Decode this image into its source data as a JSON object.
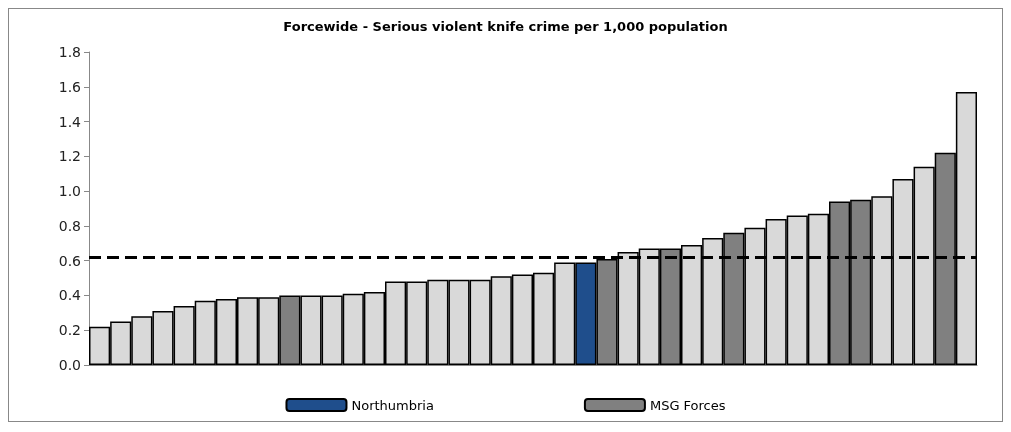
{
  "chart_data": {
    "type": "bar",
    "title": "Forcewide - Serious violent knife crime per 1,000 population",
    "categories": [
      null,
      null,
      null,
      null,
      null,
      null,
      null,
      null,
      null,
      null,
      null,
      null,
      null,
      null,
      null,
      null,
      null,
      null,
      null,
      null,
      null,
      null,
      null,
      null,
      null,
      null,
      null,
      null,
      null,
      null,
      null,
      null,
      null,
      null,
      null,
      null,
      null,
      null,
      null,
      null,
      null,
      null
    ],
    "series": [
      {
        "color": "#d9d9d9",
        "values": [
          0.22,
          0.25,
          0.28,
          0.31,
          0.34,
          0.37,
          0.38,
          0.39,
          0.39,
          null,
          0.4,
          0.4,
          0.41,
          0.42,
          0.48,
          0.48,
          0.49,
          0.49,
          0.49,
          0.51,
          0.52,
          0.53,
          0.59,
          null,
          null,
          0.65,
          0.67,
          null,
          0.69,
          0.73,
          null,
          0.79,
          0.84,
          0.86,
          0.87,
          null,
          null,
          0.97,
          1.07,
          1.14,
          null,
          1.57
        ]
      },
      {
        "name": "Northumbria",
        "color": "#1f4e8c",
        "values": [
          null,
          null,
          null,
          null,
          null,
          null,
          null,
          null,
          null,
          null,
          null,
          null,
          null,
          null,
          null,
          null,
          null,
          null,
          null,
          null,
          null,
          null,
          null,
          0.59,
          null,
          null,
          null,
          null,
          null,
          null,
          null,
          null,
          null,
          null,
          null,
          null,
          null,
          null,
          null,
          null,
          null,
          null
        ]
      },
      {
        "name": "MSG Forces",
        "color": "#808080",
        "values": [
          null,
          null,
          null,
          null,
          null,
          null,
          null,
          null,
          null,
          0.4,
          null,
          null,
          null,
          null,
          null,
          null,
          null,
          null,
          null,
          null,
          null,
          null,
          null,
          null,
          0.61,
          null,
          null,
          0.67,
          null,
          null,
          0.76,
          null,
          null,
          null,
          null,
          0.94,
          0.95,
          null,
          null,
          null,
          1.22,
          null
        ]
      }
    ],
    "ylim": [
      0,
      1.8
    ],
    "yticks": [
      {
        "value": 0,
        "label": "0.0"
      },
      {
        "value": 0.2,
        "label": "0.2"
      },
      {
        "value": 0.4,
        "label": "0.4"
      },
      {
        "value": 0.6,
        "label": "0.6"
      },
      {
        "value": 0.8,
        "label": "0.8"
      },
      {
        "value": 1,
        "label": "1.0"
      },
      {
        "value": 1.2,
        "label": "1.2"
      },
      {
        "value": 1.4,
        "label": "1.4"
      },
      {
        "value": 1.6,
        "label": "1.6"
      },
      {
        "value": 1.8,
        "label": "1.8"
      }
    ],
    "ref_lines": [
      {
        "axis": "y",
        "value": 0.62,
        "color": "#000000",
        "line_style": "dashed"
      }
    ],
    "grid": false,
    "legend": "bottom"
  }
}
